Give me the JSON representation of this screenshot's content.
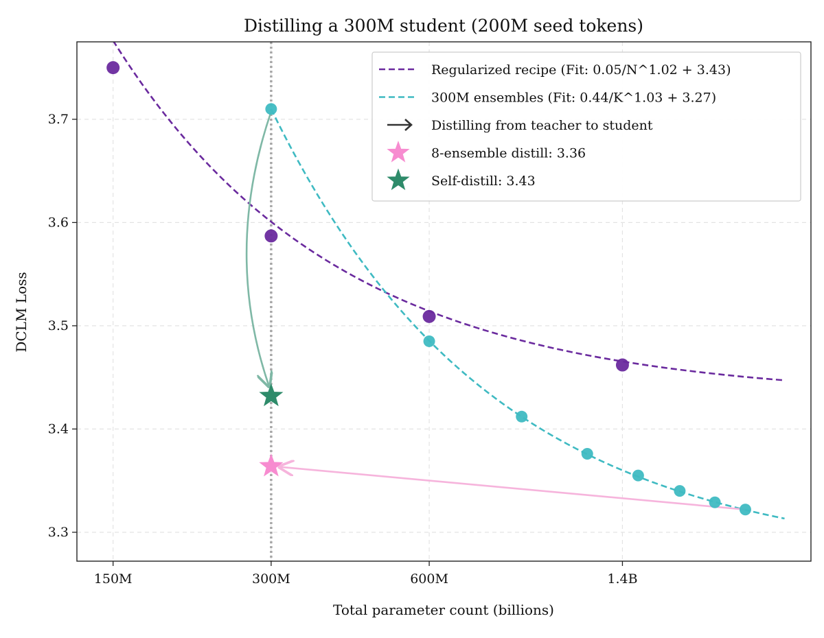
{
  "chart_data": {
    "type": "line",
    "title": "Distilling a 300M student (200M seed tokens)",
    "xlabel": "Total parameter count (billions)",
    "ylabel": "DCLM Loss",
    "xscale": "log",
    "xlim": [
      0.128,
      3.2
    ],
    "ylim": [
      3.272,
      3.775
    ],
    "grid": true,
    "legend_position": "top-right",
    "xticks": [
      {
        "value": 0.15,
        "label": "150M"
      },
      {
        "value": 0.3,
        "label": "300M"
      },
      {
        "value": 0.6,
        "label": "600M"
      },
      {
        "value": 1.4,
        "label": "1.4B"
      }
    ],
    "yticks": [
      {
        "value": 3.3,
        "label": "3.3"
      },
      {
        "value": 3.4,
        "label": "3.4"
      },
      {
        "value": 3.5,
        "label": "3.5"
      },
      {
        "value": 3.6,
        "label": "3.6"
      },
      {
        "value": 3.7,
        "label": "3.7"
      }
    ],
    "series": [
      {
        "name": "Regularized recipe (Fit: 0.05/N^1.02 + 3.43)",
        "color": "#6a2a9e",
        "style": "dashed-fit-with-markers",
        "fit": {
          "a": 0.05,
          "b": 1.02,
          "c": 3.43,
          "x_from": 0.15,
          "x_to": 2.85,
          "var": "N"
        },
        "points": [
          {
            "x": 0.15,
            "y": 3.75
          },
          {
            "x": 0.3,
            "y": 3.587
          },
          {
            "x": 0.6,
            "y": 3.509
          },
          {
            "x": 1.4,
            "y": 3.462
          }
        ]
      },
      {
        "name": "300M ensembles (Fit: 0.44/K^1.03 + 3.27)",
        "color": "#3fbac2",
        "style": "dashed-fit-with-markers",
        "fit": {
          "a": 0.44,
          "b": 1.03,
          "c": 3.27,
          "x_from": 0.3,
          "x_to": 2.85,
          "var": "K",
          "k_unit": 0.3
        },
        "points": [
          {
            "x": 0.3,
            "y": 3.71
          },
          {
            "x": 0.6,
            "y": 3.485
          },
          {
            "x": 0.9,
            "y": 3.412
          },
          {
            "x": 1.2,
            "y": 3.376
          },
          {
            "x": 1.5,
            "y": 3.355
          },
          {
            "x": 1.8,
            "y": 3.34
          },
          {
            "x": 2.1,
            "y": 3.329
          },
          {
            "x": 2.4,
            "y": 3.322
          }
        ]
      }
    ],
    "reference_line": {
      "x": 0.3,
      "color": "#999999",
      "style": "dotted"
    },
    "stars": [
      {
        "name": "8-ensemble distill: 3.36",
        "x": 0.3,
        "y": 3.364,
        "color": "#f78cd0"
      },
      {
        "name": "Self-distill: 3.43",
        "x": 0.3,
        "y": 3.432,
        "color": "#2e8b6a"
      }
    ],
    "arrows": [
      {
        "from": {
          "x": 0.3,
          "y": 3.71
        },
        "to": {
          "x": 0.3,
          "y": 3.432
        },
        "color": "#7fb8a6",
        "curve": "left"
      },
      {
        "from": {
          "x": 2.4,
          "y": 3.322
        },
        "to": {
          "x": 0.3,
          "y": 3.364
        },
        "color": "#f6b4dc",
        "curve": "none"
      }
    ],
    "legend": [
      {
        "kind": "dashed",
        "color": "#6a2a9e",
        "label": "Regularized recipe (Fit: 0.05/N^1.02 + 3.43)"
      },
      {
        "kind": "dashed",
        "color": "#3fbac2",
        "label": "300M ensembles (Fit: 0.44/K^1.03 + 3.27)"
      },
      {
        "kind": "arrow",
        "color": "#333333",
        "label": "Distilling from teacher to student"
      },
      {
        "kind": "star",
        "color": "#f78cd0",
        "label": "8-ensemble distill: 3.36"
      },
      {
        "kind": "star",
        "color": "#2e8b6a",
        "label": "Self-distill: 3.43"
      }
    ]
  }
}
